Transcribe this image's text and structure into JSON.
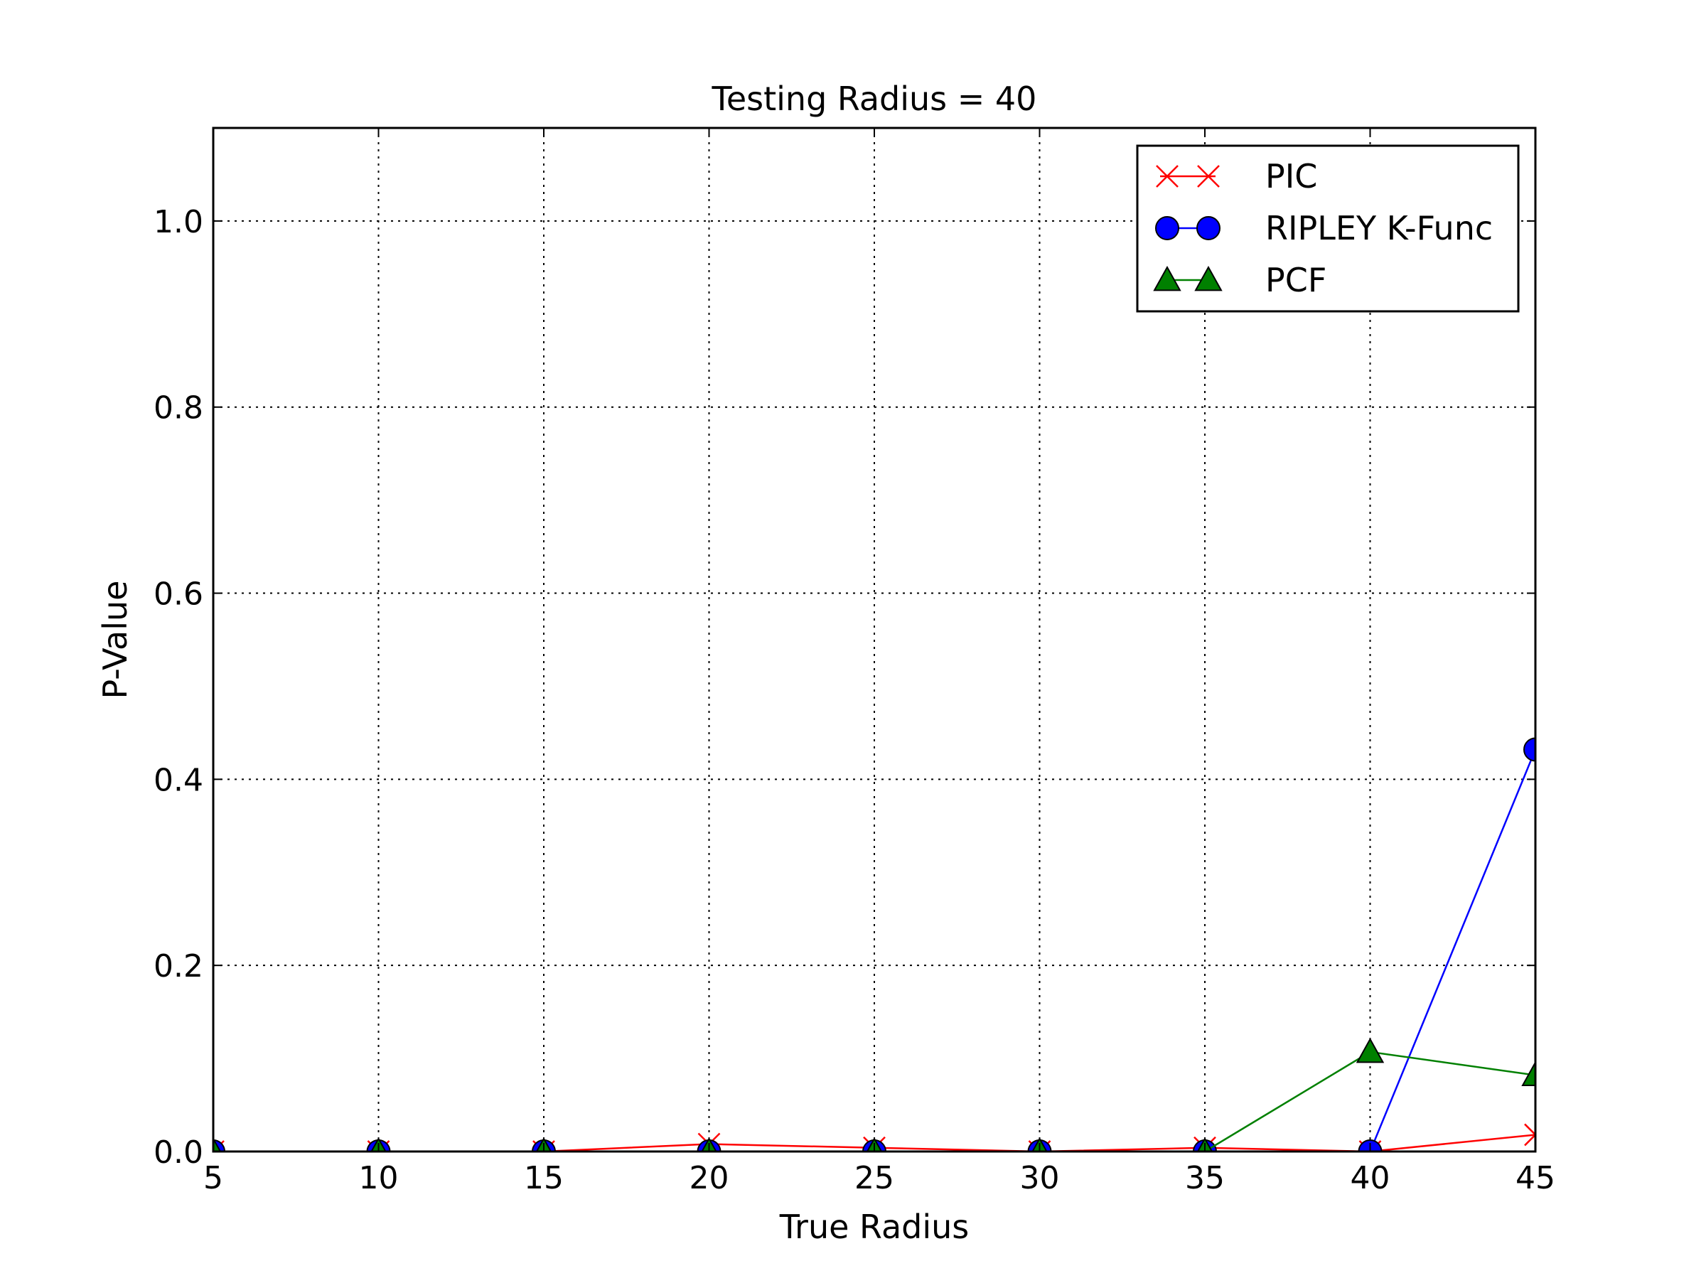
{
  "chart_data": {
    "type": "line",
    "title": "Testing Radius = 40",
    "xlabel": "True Radius",
    "ylabel": "P-Value",
    "xlim": [
      5,
      45
    ],
    "ylim": [
      0,
      1.1
    ],
    "x": [
      5,
      10,
      15,
      20,
      25,
      30,
      35,
      40,
      45
    ],
    "xticks": [
      "5",
      "10",
      "15",
      "20",
      "25",
      "30",
      "35",
      "40",
      "45"
    ],
    "yticks": [
      {
        "value": 0.0,
        "label": "0.0"
      },
      {
        "value": 0.2,
        "label": "0.2"
      },
      {
        "value": 0.4,
        "label": "0.4"
      },
      {
        "value": 0.6,
        "label": "0.6"
      },
      {
        "value": 0.8,
        "label": "0.8"
      },
      {
        "value": 1.0,
        "label": "1.0"
      }
    ],
    "grid": true,
    "legend_position": "top-right",
    "series": [
      {
        "name": "PIC",
        "color": "#ff0000",
        "marker": "x",
        "values": [
          0.0,
          0.0,
          0.0,
          0.008,
          0.004,
          0.0,
          0.004,
          0.0,
          0.018
        ]
      },
      {
        "name": "RIPLEY K-Func",
        "color": "#0000ff",
        "marker": "circle",
        "values": [
          0.0,
          0.0,
          0.0,
          0.0,
          0.0,
          0.0,
          0.0,
          0.0,
          0.432
        ]
      },
      {
        "name": "PCF",
        "color": "#008000",
        "marker": "triangle",
        "values": [
          0.0,
          0.0,
          0.0,
          0.0,
          0.0,
          0.0,
          0.0,
          0.107,
          0.082
        ]
      }
    ]
  }
}
